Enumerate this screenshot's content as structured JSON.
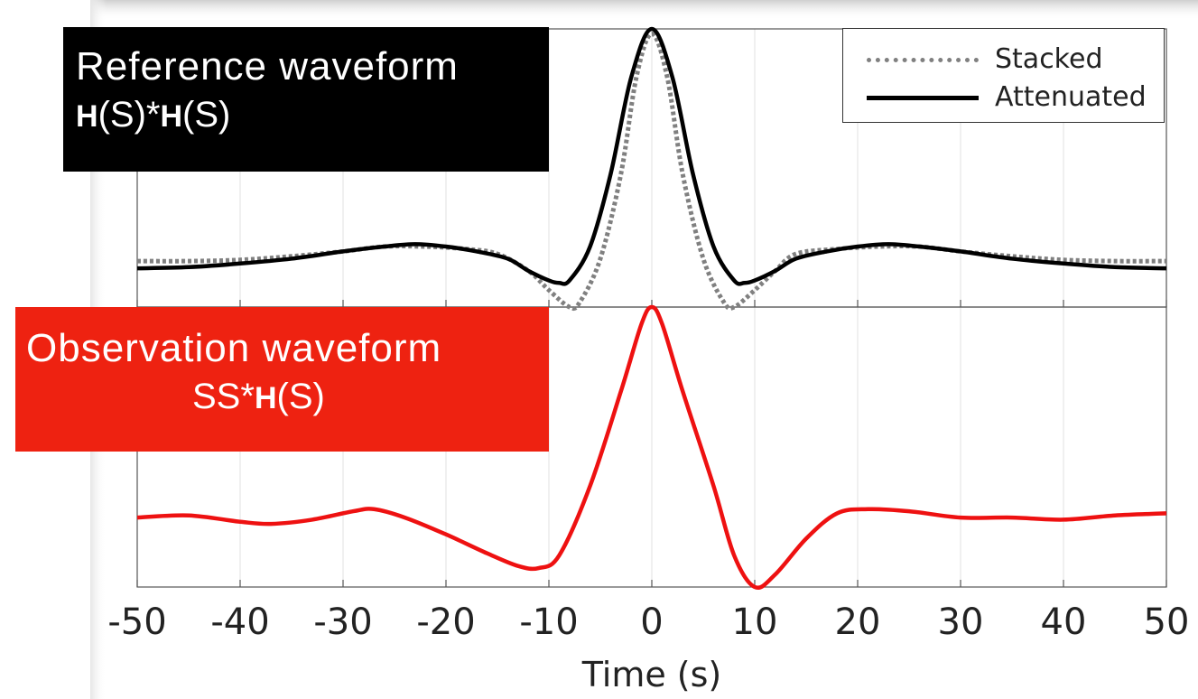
{
  "labels": {
    "reference_line1": "Reference waveform",
    "reference_line2_a": "H",
    "reference_line2_b": "(S)*",
    "reference_line2_c": "H",
    "reference_line2_d": "(S)",
    "observation_line1": "Observation waveform",
    "observation_line2_a": "SS*",
    "observation_line2_b": "H",
    "observation_line2_c": "(S)"
  },
  "colors": {
    "stacked": "#808080",
    "attenuated": "#000000",
    "observation": "#ee1111",
    "reference_box": "#000000",
    "observation_box": "#ee2211"
  },
  "chart_data": {
    "type": "line",
    "xlabel": "Time (s)",
    "xlim": [
      -50,
      50
    ],
    "x_ticks": [
      -50,
      -40,
      -30,
      -20,
      -10,
      0,
      10,
      20,
      30,
      40,
      50
    ],
    "grid": true,
    "legend": {
      "position": "top-right",
      "entries": [
        {
          "name": "Stacked",
          "style": "dotted"
        },
        {
          "name": "Attenuated",
          "style": "solid"
        }
      ]
    },
    "panels": [
      {
        "id": "top",
        "ylim": [
          -0.15,
          1.0
        ],
        "series": [
          {
            "name": "Stacked",
            "color": "#808080",
            "style": "dotted",
            "points": [
              [
                -50,
                0.04
              ],
              [
                -45,
                0.04
              ],
              [
                -40,
                0.045
              ],
              [
                -35,
                0.06
              ],
              [
                -30,
                0.08
              ],
              [
                -26,
                0.1
              ],
              [
                -22,
                0.1
              ],
              [
                -18,
                0.09
              ],
              [
                -15,
                0.07
              ],
              [
                -12,
                0.0
              ],
              [
                -10,
                -0.08
              ],
              [
                -8,
                -0.15
              ],
              [
                -7,
                -0.13
              ],
              [
                -5,
                0.05
              ],
              [
                -3,
                0.4
              ],
              [
                -1.5,
                0.8
              ],
              [
                0,
                0.98
              ],
              [
                1.5,
                0.8
              ],
              [
                3,
                0.4
              ],
              [
                5,
                0.05
              ],
              [
                7,
                -0.13
              ],
              [
                8,
                -0.15
              ],
              [
                10,
                -0.08
              ],
              [
                12,
                0.0
              ],
              [
                14,
                0.07
              ],
              [
                18,
                0.09
              ],
              [
                22,
                0.1
              ],
              [
                26,
                0.1
              ],
              [
                30,
                0.08
              ],
              [
                35,
                0.06
              ],
              [
                40,
                0.045
              ],
              [
                45,
                0.04
              ],
              [
                50,
                0.04
              ]
            ]
          },
          {
            "name": "Attenuated",
            "color": "#000000",
            "style": "solid",
            "points": [
              [
                -50,
                0.01
              ],
              [
                -45,
                0.015
              ],
              [
                -40,
                0.03
              ],
              [
                -35,
                0.05
              ],
              [
                -30,
                0.08
              ],
              [
                -26,
                0.1
              ],
              [
                -23,
                0.11
              ],
              [
                -20,
                0.1
              ],
              [
                -17,
                0.08
              ],
              [
                -14,
                0.05
              ],
              [
                -12,
                0.0
              ],
              [
                -10,
                -0.04
              ],
              [
                -9,
                -0.05
              ],
              [
                -8,
                -0.04
              ],
              [
                -6,
                0.1
              ],
              [
                -4,
                0.4
              ],
              [
                -2,
                0.8
              ],
              [
                0,
                1.0
              ],
              [
                2,
                0.8
              ],
              [
                4,
                0.4
              ],
              [
                6,
                0.1
              ],
              [
                8,
                -0.04
              ],
              [
                9,
                -0.05
              ],
              [
                10,
                -0.04
              ],
              [
                12,
                0.0
              ],
              [
                14,
                0.05
              ],
              [
                17,
                0.08
              ],
              [
                20,
                0.1
              ],
              [
                23,
                0.11
              ],
              [
                26,
                0.1
              ],
              [
                30,
                0.08
              ],
              [
                35,
                0.05
              ],
              [
                40,
                0.03
              ],
              [
                45,
                0.015
              ],
              [
                50,
                0.01
              ]
            ]
          }
        ]
      },
      {
        "id": "bottom",
        "ylim": [
          -0.33,
          1.0
        ],
        "series": [
          {
            "name": "",
            "color": "#ee1111",
            "style": "solid",
            "points": [
              [
                -50,
                0.0
              ],
              [
                -45,
                0.01
              ],
              [
                -40,
                -0.02
              ],
              [
                -37,
                -0.03
              ],
              [
                -33,
                -0.01
              ],
              [
                -29,
                0.03
              ],
              [
                -27,
                0.04
              ],
              [
                -24,
                0.0
              ],
              [
                -20,
                -0.08
              ],
              [
                -16,
                -0.17
              ],
              [
                -13,
                -0.23
              ],
              [
                -11,
                -0.24
              ],
              [
                -9,
                -0.18
              ],
              [
                -6,
                0.15
              ],
              [
                -3,
                0.6
              ],
              [
                -1,
                0.92
              ],
              [
                0,
                1.0
              ],
              [
                1,
                0.92
              ],
              [
                3,
                0.6
              ],
              [
                6,
                0.15
              ],
              [
                8,
                -0.18
              ],
              [
                10,
                -0.33
              ],
              [
                12,
                -0.27
              ],
              [
                15,
                -0.1
              ],
              [
                18,
                0.02
              ],
              [
                21,
                0.04
              ],
              [
                25,
                0.03
              ],
              [
                30,
                0.0
              ],
              [
                35,
                0.0
              ],
              [
                40,
                -0.01
              ],
              [
                45,
                0.01
              ],
              [
                50,
                0.02
              ]
            ]
          }
        ]
      }
    ]
  }
}
